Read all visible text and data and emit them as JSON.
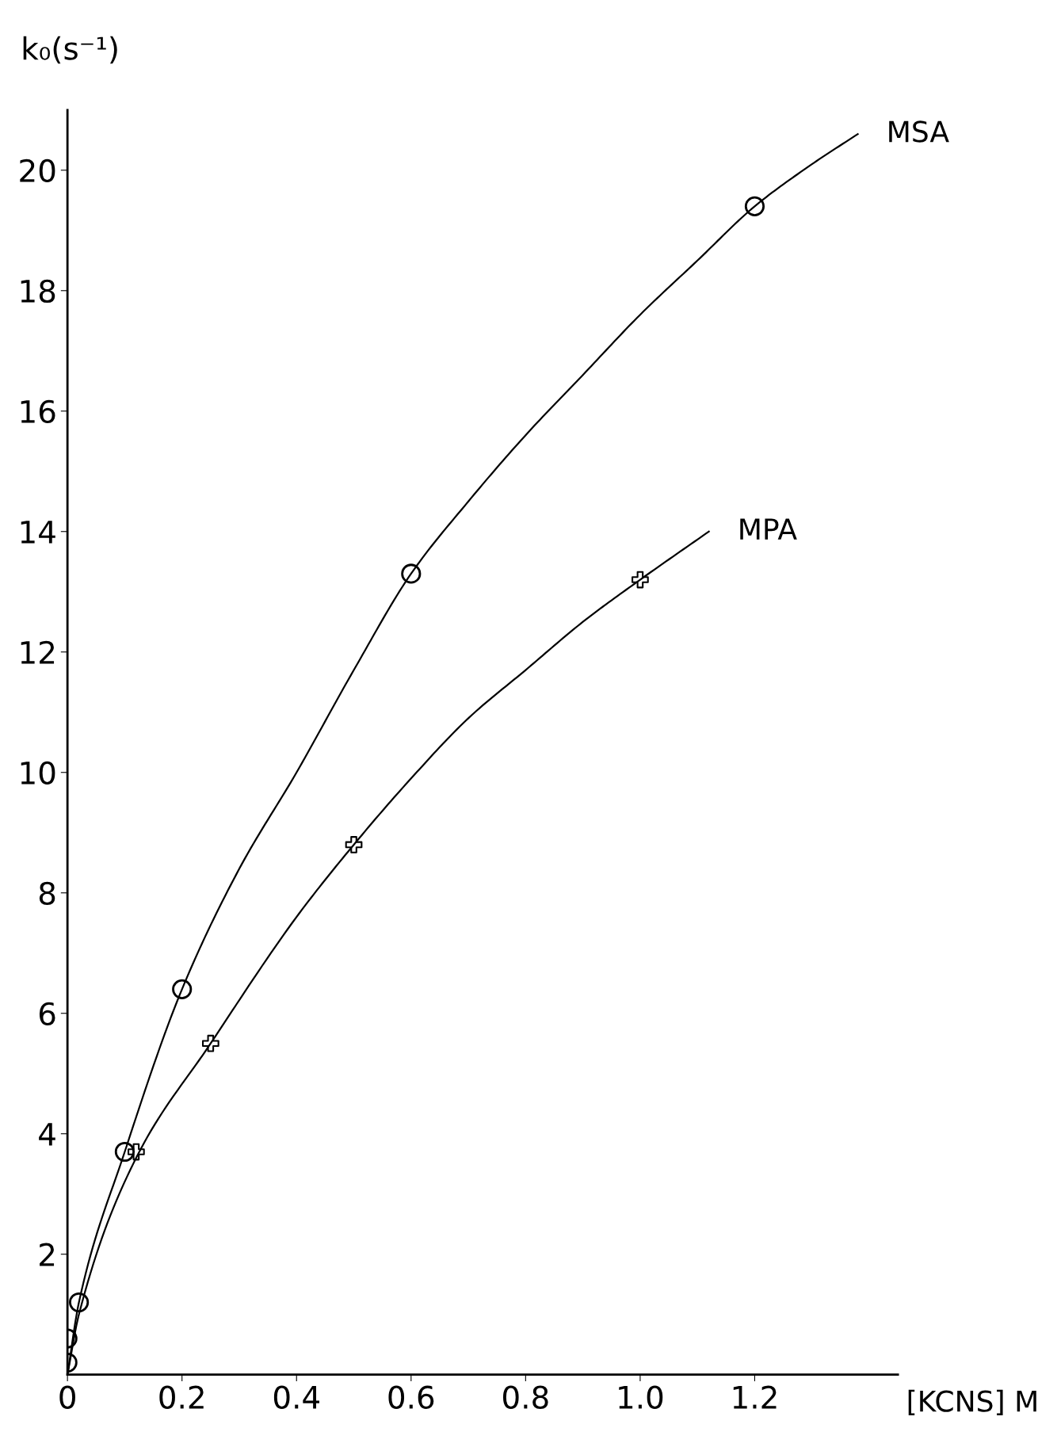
{
  "chart_data": {
    "type": "scatter",
    "xlabel": "[KCNS] M",
    "ylabel": "k₀(s⁻¹)",
    "series": [
      {
        "type": "line",
        "name": "MSA",
        "color": "#000000",
        "marker": "none",
        "x": [
          0,
          0.02,
          0.1,
          0.2,
          0.3,
          0.4,
          0.5,
          0.6,
          0.7,
          0.8,
          0.9,
          1.0,
          1.1,
          1.2,
          1.3,
          1.38
        ],
        "values": [
          0,
          1.2,
          3.7,
          6.4,
          8.4,
          10.0,
          11.7,
          13.3,
          14.5,
          15.6,
          16.6,
          17.6,
          18.5,
          19.4,
          20.1,
          20.6
        ]
      },
      {
        "type": "line",
        "name": "MPA",
        "color": "#000000",
        "marker": "none",
        "x": [
          0,
          0.02,
          0.12,
          0.25,
          0.4,
          0.5,
          0.6,
          0.7,
          0.8,
          0.9,
          1.0,
          1.12
        ],
        "values": [
          0,
          1.0,
          3.6,
          5.5,
          7.6,
          8.8,
          9.9,
          10.9,
          11.7,
          12.5,
          13.2,
          14.0
        ]
      },
      {
        "color": "#000000",
        "marker": "circle",
        "x": [
          0,
          0,
          0.02,
          0.1,
          0.2,
          0.6,
          1.2
        ],
        "values": [
          0.2,
          0.6,
          1.2,
          3.7,
          6.4,
          13.3,
          19.4
        ]
      },
      {
        "color": "#000000",
        "marker": "cross",
        "x": [
          0.12,
          0.25,
          0.5,
          1.0
        ],
        "values": [
          3.7,
          5.5,
          8.8,
          13.2
        ]
      }
    ],
    "xlim": [
      0,
      1.45
    ],
    "ylim": [
      0,
      21
    ],
    "xticks": [
      0,
      0.2,
      0.4,
      0.6,
      0.8,
      {
        "value": 1.0,
        "label": "1.0"
      },
      1.2
    ],
    "yticks": [
      2,
      4,
      6,
      8,
      10,
      12,
      14,
      16,
      18,
      20
    ],
    "grid": false,
    "legend": false
  }
}
